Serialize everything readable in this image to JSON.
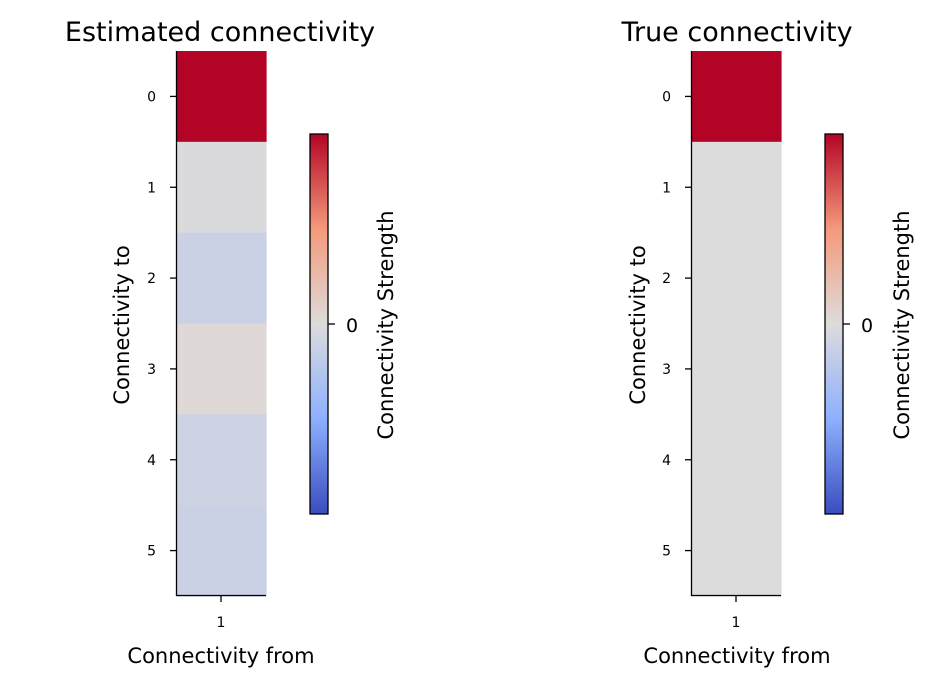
{
  "chart_data": [
    {
      "type": "heatmap",
      "title": "Estimated connectivity",
      "xlabel": "Connectivity from",
      "ylabel": "Connectivity to",
      "x_ticks": [
        "1"
      ],
      "y_ticks": [
        "0",
        "1",
        "2",
        "3",
        "4",
        "5"
      ],
      "values": [
        [
          1.0
        ],
        [
          -0.02
        ],
        [
          -0.12
        ],
        [
          0.03
        ],
        [
          -0.1
        ],
        [
          -0.12
        ]
      ],
      "colormap": "coolwarm",
      "colorbar": {
        "label": "Connectivity Strength",
        "ticks": [
          "0"
        ],
        "vmin": -1,
        "vmax": 1
      }
    },
    {
      "type": "heatmap",
      "title": "True connectivity",
      "xlabel": "Connectivity from",
      "ylabel": "Connectivity to",
      "x_ticks": [
        "1"
      ],
      "y_ticks": [
        "0",
        "1",
        "2",
        "3",
        "4",
        "5"
      ],
      "values": [
        [
          1.0
        ],
        [
          0.0
        ],
        [
          0.0
        ],
        [
          0.0
        ],
        [
          0.0
        ],
        [
          0.0
        ]
      ],
      "colormap": "coolwarm",
      "colorbar": {
        "label": "Connectivity Strength",
        "ticks": [
          "0"
        ],
        "vmin": -1,
        "vmax": 1
      }
    }
  ]
}
